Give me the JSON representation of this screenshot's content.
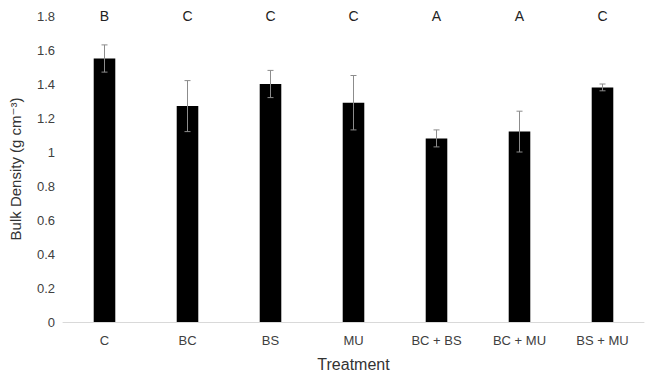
{
  "chart_data": {
    "type": "bar",
    "x_label": "Treatment",
    "y_label": "Bulk Density (g cm⁻³)",
    "categories": [
      "C",
      "BC",
      "BS",
      "MU",
      "BC + BS",
      "BC + MU",
      "BS + MU"
    ],
    "values": [
      1.55,
      1.27,
      1.4,
      1.29,
      1.08,
      1.12,
      1.38
    ],
    "errors": [
      0.08,
      0.15,
      0.08,
      0.16,
      0.05,
      0.12,
      0.02
    ],
    "annotations": [
      "B",
      "C",
      "C",
      "C",
      "A",
      "A",
      "C"
    ],
    "color": "#000000",
    "ylim": [
      0,
      1.8
    ],
    "yticks": [
      0,
      0.2,
      0.4,
      0.6,
      0.8,
      1,
      1.2,
      1.4,
      1.6,
      1.8
    ],
    "grid": false
  }
}
